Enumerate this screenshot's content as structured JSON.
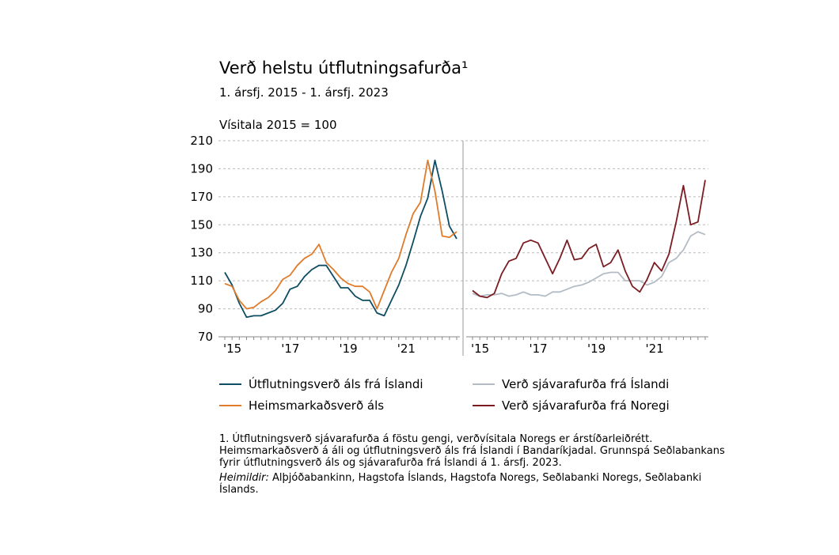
{
  "title": "Verð helstu útflutningsafurða¹",
  "subtitle": "1. ársfj. 2015 - 1. ársfj. 2023",
  "unit_label": "Vísitala 2015 = 100",
  "footnote": "1. Útflutningsverð sjávarafurða á föstu gengi, verðvísitala Noregs er árstíðarleiðrétt. Heimsmarkaðsverð á áli og útflutningsverð áls frá Íslandi í Bandaríkjadal. Grunnspá Seðlabankans fyrir útflutningsverð áls og sjávarafurða frá Íslandi á 1. ársfj. 2023.",
  "sources_label": "Heimildir:",
  "sources_text": " Alþjóðabankinn, Hagstofa Íslands, Hagstofa Noregs, Seðlabanki Noregs, Seðlabanki Íslands.",
  "chart_data": [
    {
      "type": "line",
      "panel": "left",
      "ylim": [
        70,
        210
      ],
      "yticks": [
        70,
        90,
        110,
        130,
        150,
        170,
        190,
        210
      ],
      "ytick_labels": [
        "70",
        "90",
        "110",
        "130",
        "150",
        "170",
        "190",
        "210"
      ],
      "xtick_labels": [
        "'15",
        "'17",
        "'19",
        "'21"
      ],
      "xtick_years": [
        2015,
        2017,
        2019,
        2021
      ],
      "grid": true,
      "x": [
        2015.0,
        2015.25,
        2015.5,
        2015.75,
        2016.0,
        2016.25,
        2016.5,
        2016.75,
        2017.0,
        2017.25,
        2017.5,
        2017.75,
        2018.0,
        2018.25,
        2018.5,
        2018.75,
        2019.0,
        2019.25,
        2019.5,
        2019.75,
        2020.0,
        2020.25,
        2020.5,
        2020.75,
        2021.0,
        2021.25,
        2021.5,
        2021.75,
        2022.0,
        2022.25,
        2022.5,
        2022.75,
        2023.0
      ],
      "series": [
        {
          "name": "Útflutningsverð áls frá Íslandi",
          "color": "#0e4d64",
          "values": [
            116,
            107,
            94,
            84,
            85,
            85,
            87,
            89,
            94,
            104,
            106,
            113,
            118,
            121,
            121,
            113,
            105,
            105,
            99,
            96,
            96,
            87,
            85,
            96,
            107,
            121,
            138,
            156,
            169,
            196,
            174,
            149,
            140
          ]
        },
        {
          "name": "Heimsmarkaðsverð áls",
          "color": "#e07b2a",
          "values": [
            108,
            106,
            96,
            90,
            91,
            95,
            98,
            103,
            111,
            114,
            121,
            126,
            129,
            136,
            123,
            118,
            112,
            108,
            106,
            106,
            102,
            90,
            103,
            116,
            126,
            143,
            158,
            166,
            196,
            174,
            142,
            141,
            145
          ]
        }
      ]
    },
    {
      "type": "line",
      "panel": "right",
      "ylim": [
        70,
        210
      ],
      "xtick_labels": [
        "'15",
        "'17",
        "'19",
        "'21"
      ],
      "xtick_years": [
        2015,
        2017,
        2019,
        2021
      ],
      "grid": true,
      "x": [
        2015.0,
        2015.25,
        2015.5,
        2015.75,
        2016.0,
        2016.25,
        2016.5,
        2016.75,
        2017.0,
        2017.25,
        2017.5,
        2017.75,
        2018.0,
        2018.25,
        2018.5,
        2018.75,
        2019.0,
        2019.25,
        2019.5,
        2019.75,
        2020.0,
        2020.25,
        2020.5,
        2020.75,
        2021.0,
        2021.25,
        2021.5,
        2021.75,
        2022.0,
        2022.25,
        2022.5,
        2022.75,
        2023.0
      ],
      "series": [
        {
          "name": "Verð sjávarafurða frá Íslandi",
          "color": "#b3bcc5",
          "values": [
            101,
            99,
            100,
            100,
            101,
            99,
            100,
            102,
            100,
            100,
            99,
            102,
            102,
            104,
            106,
            107,
            109,
            112,
            115,
            116,
            116,
            110,
            110,
            110,
            107,
            109,
            113,
            123,
            126,
            132,
            142,
            145,
            143
          ]
        },
        {
          "name": "Verð sjávarafurða frá Noregi",
          "color": "#7b1c22",
          "values": [
            103,
            99,
            98,
            101,
            115,
            124,
            126,
            137,
            139,
            137,
            126,
            115,
            126,
            139,
            125,
            126,
            133,
            136,
            120,
            123,
            132,
            117,
            106,
            102,
            111,
            123,
            117,
            129,
            152,
            178,
            150,
            152,
            182
          ]
        }
      ]
    }
  ]
}
